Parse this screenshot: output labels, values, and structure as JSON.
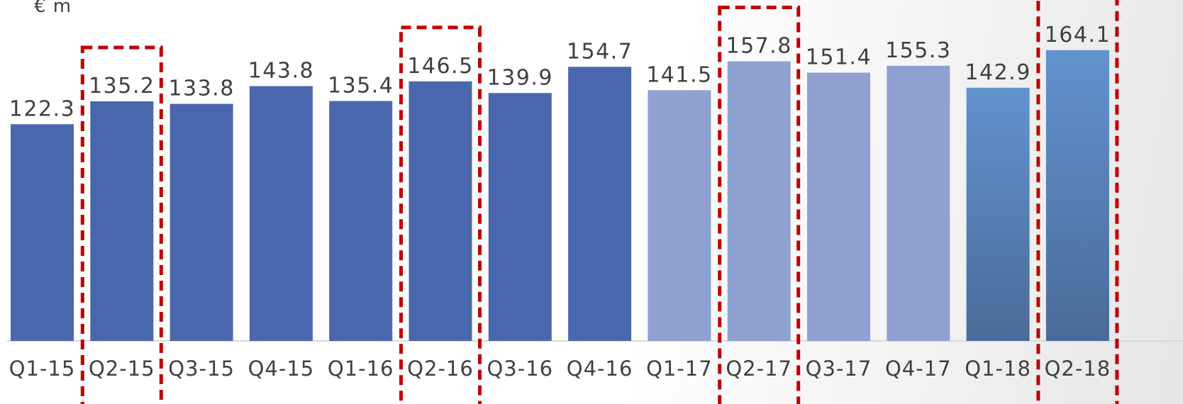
{
  "chart_data": {
    "type": "bar",
    "ylabel": "€ m",
    "categories": [
      "Q1-15",
      "Q2-15",
      "Q3-15",
      "Q4-15",
      "Q1-16",
      "Q2-16",
      "Q3-16",
      "Q4-16",
      "Q1-17",
      "Q2-17",
      "Q3-17",
      "Q4-17",
      "Q1-18",
      "Q2-18"
    ],
    "values": [
      122.3,
      135.2,
      133.8,
      143.8,
      135.4,
      146.5,
      139.9,
      154.7,
      141.5,
      157.8,
      151.4,
      155.3,
      142.9,
      164.1
    ],
    "highlighted": [
      "Q2-15",
      "Q2-16",
      "Q2-17",
      "Q2-18"
    ],
    "ylim": [
      0,
      170
    ],
    "grid": false,
    "colors": {
      "2015": "#4a67ae",
      "2016": "#4a67ae",
      "2017": "#8fa1d1",
      "2018_top": "#6193cf",
      "2018_bottom": "#4a6b99",
      "highlight_border": "#c00000",
      "axis": "#d9d9d9",
      "text": "#404040"
    }
  }
}
